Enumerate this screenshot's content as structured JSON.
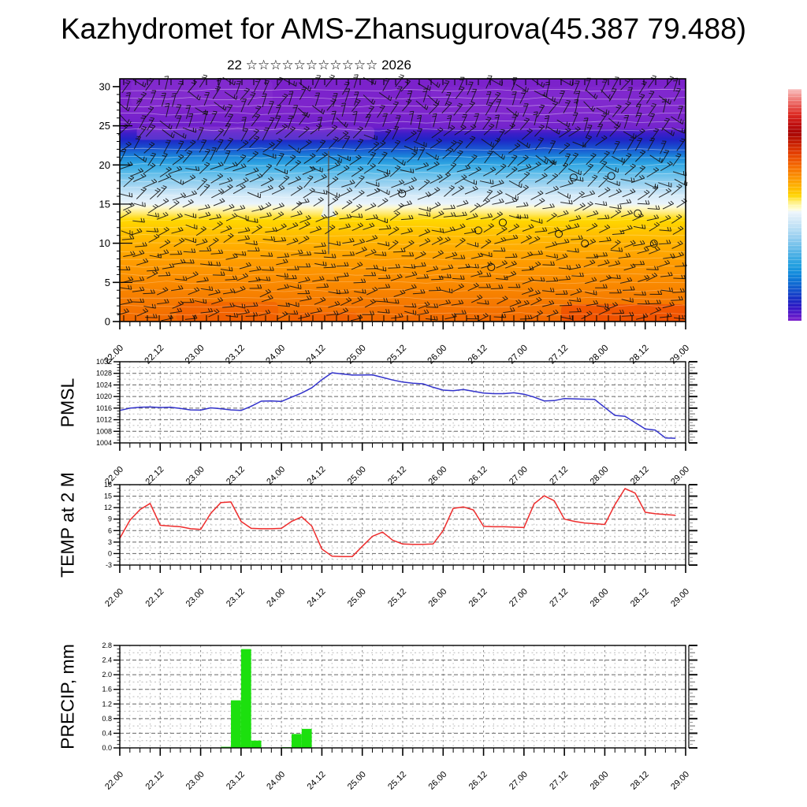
{
  "page": {
    "title": "Kazhydromet for AMS-Zhansugurova(45.387 79.488)",
    "subtitle": "22 ☆☆☆☆☆☆☆☆☆☆☆ 2026",
    "background": "#ffffff"
  },
  "time_axis": {
    "start": "22.00",
    "end": "29.00",
    "labels": [
      "22.00",
      "22.12",
      "23.00",
      "23.12",
      "24.00",
      "24.12",
      "25.00",
      "25.12",
      "26.00",
      "26.12",
      "27.00",
      "27.12",
      "28.00",
      "28.12",
      "29.00"
    ],
    "minor_step_hours": 3,
    "major_label_step_hours": 12
  },
  "chart_data": [
    {
      "id": "cross_section",
      "type": "heatmap",
      "title": "",
      "description": "time-height cross-section, colored by temperature with wind barbs",
      "ylim": [
        0,
        31
      ],
      "yticks": [
        0,
        5,
        10,
        15,
        20,
        25,
        30
      ],
      "ytick_labels": [
        "0",
        "5",
        "10",
        "15",
        "20",
        "25",
        "30"
      ],
      "gradient_stops": [
        {
          "pct": 0,
          "color": "#7b21cb"
        },
        {
          "pct": 13,
          "color": "#7e25cc"
        },
        {
          "pct": 20,
          "color": "#6d1ecb"
        },
        {
          "pct": 22.5,
          "color": "#3c1ec8"
        },
        {
          "pct": 25,
          "color": "#2124c6"
        },
        {
          "pct": 27,
          "color": "#1a3ecb"
        },
        {
          "pct": 29.5,
          "color": "#1a5ed2"
        },
        {
          "pct": 32,
          "color": "#1b86da"
        },
        {
          "pct": 35,
          "color": "#2fa4e2"
        },
        {
          "pct": 38.5,
          "color": "#58bae9"
        },
        {
          "pct": 42,
          "color": "#8accee"
        },
        {
          "pct": 45,
          "color": "#b0daf3"
        },
        {
          "pct": 48,
          "color": "#d4eaf8"
        },
        {
          "pct": 51.5,
          "color": "#eaf4fb"
        },
        {
          "pct": 53,
          "color": "#fdf8cf"
        },
        {
          "pct": 55.5,
          "color": "#ffe96e"
        },
        {
          "pct": 58,
          "color": "#ffd800"
        },
        {
          "pct": 62,
          "color": "#ffc800"
        },
        {
          "pct": 68,
          "color": "#ffb000"
        },
        {
          "pct": 75,
          "color": "#fe9d00"
        },
        {
          "pct": 82,
          "color": "#fb8e00"
        },
        {
          "pct": 90,
          "color": "#f67e00"
        },
        {
          "pct": 100,
          "color": "#f26800"
        }
      ],
      "patches": [
        {
          "xf": 0.03,
          "wf": 0.42,
          "h0": 23.2,
          "h1": 24.9,
          "color": "#9b4ad8",
          "opacity": 0.45
        },
        {
          "xf": 0.02,
          "wf": 0.25,
          "h0": 27.5,
          "h1": 30.8,
          "color": "#8d36d2",
          "opacity": 0.4
        },
        {
          "xf": 0.55,
          "wf": 0.45,
          "h0": 24.5,
          "h1": 30.0,
          "color": "#8d36d2",
          "opacity": 0.25
        },
        {
          "xf": 0.78,
          "wf": 0.22,
          "h0": 0.0,
          "h1": 2.2,
          "color": "#ee3a00",
          "opacity": 0.5
        },
        {
          "xf": 0.1,
          "wf": 0.18,
          "h0": 0.0,
          "h1": 2.5,
          "color": "#ee4a00",
          "opacity": 0.35
        },
        {
          "xf": 0.3,
          "wf": 0.12,
          "h0": 0.0,
          "h1": 1.2,
          "color": "#ee4a00",
          "opacity": 0.3
        }
      ],
      "seam_time_frac": 0.369,
      "overlays": {
        "wind_barbs": true,
        "calm_circles": true,
        "contour_lines": true
      }
    },
    {
      "id": "pmsl",
      "type": "line",
      "title": "PMSL",
      "color": "#3333cc",
      "ylim": [
        1004,
        1032
      ],
      "yticks": [
        1004,
        1008,
        1012,
        1016,
        1020,
        1024,
        1028,
        1032
      ],
      "ytick_labels": [
        "1004",
        "1008",
        "1012",
        "1016",
        "1020",
        "1024",
        "1028",
        "1032"
      ],
      "minor_unit": 1,
      "x_start": "22.00",
      "step_hours": 3,
      "values": [
        1015.2,
        1016.0,
        1016.3,
        1016.4,
        1016.2,
        1016.3,
        1015.9,
        1015.4,
        1015.3,
        1016.1,
        1015.8,
        1015.4,
        1015.2,
        1016.6,
        1018.4,
        1018.5,
        1018.3,
        1019.8,
        1021.2,
        1023.0,
        1025.8,
        1028.2,
        1027.8,
        1027.4,
        1027.4,
        1027.5,
        1026.6,
        1025.7,
        1025.0,
        1024.6,
        1024.4,
        1023.2,
        1022.2,
        1022.0,
        1022.4,
        1021.8,
        1021.2,
        1021.0,
        1021.0,
        1021.3,
        1020.8,
        1019.8,
        1018.5,
        1018.6,
        1019.3,
        1019.2,
        1019.1,
        1019.0,
        1016.2,
        1013.5,
        1013.2,
        1011.0,
        1008.8,
        1008.4,
        1005.7,
        1005.6
      ]
    },
    {
      "id": "temp2m",
      "type": "line",
      "title": "TEMP at 2 M",
      "color": "#ee2c2c",
      "ylim": [
        -3,
        18
      ],
      "yticks": [
        -3,
        0,
        3,
        6,
        9,
        12,
        15,
        18
      ],
      "ytick_labels": [
        "-3",
        "0",
        "3",
        "6",
        "9",
        "12",
        "15",
        "18"
      ],
      "minor_unit": 1,
      "x_start": "22.00",
      "step_hours": 3,
      "values": [
        4.0,
        8.7,
        11.5,
        13.1,
        7.4,
        7.2,
        7.0,
        6.5,
        6.3,
        10.5,
        13.3,
        13.5,
        8.4,
        6.6,
        6.5,
        6.5,
        6.6,
        8.4,
        9.6,
        7.2,
        1.2,
        -0.7,
        -0.8,
        -0.8,
        1.9,
        4.5,
        5.6,
        3.5,
        2.5,
        2.4,
        2.4,
        2.5,
        6.0,
        11.8,
        12.2,
        11.4,
        7.1,
        7.0,
        7.0,
        6.9,
        6.8,
        13.0,
        15.1,
        13.8,
        9.0,
        8.4,
        8.0,
        7.8,
        7.6,
        12.8,
        17.0,
        15.8,
        10.8,
        10.4,
        10.2,
        10.0
      ]
    },
    {
      "id": "precip",
      "type": "bar",
      "title": "PRECIP, mm",
      "color": "#1ce00e",
      "ylim": [
        0,
        2.8
      ],
      "yticks": [
        0,
        0.4,
        0.8,
        1.2,
        1.6,
        2.0,
        2.4,
        2.8
      ],
      "ytick_labels": [
        "0.0",
        "0.4",
        "0.8",
        "1.2",
        "1.6",
        "2.0",
        "2.4",
        "2.8"
      ],
      "minor_unit": 0.1,
      "x_start": "22.00",
      "step_hours": 3,
      "values": [
        0,
        0,
        0,
        0,
        0,
        0,
        0,
        0,
        0,
        0,
        0.03,
        1.3,
        2.7,
        0.2,
        0,
        0,
        0.02,
        0.38,
        0.52,
        0,
        0,
        0,
        0,
        0,
        0,
        0,
        0,
        0,
        0,
        0,
        0,
        0,
        0,
        0,
        0,
        0,
        0,
        0,
        0,
        0,
        0,
        0,
        0,
        0,
        0,
        0,
        0,
        0,
        0,
        0,
        0,
        0,
        0,
        0,
        0,
        0
      ]
    }
  ],
  "colorbar": {
    "orientation": "vertical",
    "stops": [
      {
        "pct": 0,
        "color": "#f8c0c0"
      },
      {
        "pct": 3,
        "color": "#f3928f"
      },
      {
        "pct": 7,
        "color": "#e85a55"
      },
      {
        "pct": 11,
        "color": "#dd2a22"
      },
      {
        "pct": 15,
        "color": "#c11010"
      },
      {
        "pct": 19,
        "color": "#a80505"
      },
      {
        "pct": 23,
        "color": "#c51c00"
      },
      {
        "pct": 27,
        "color": "#e13a00"
      },
      {
        "pct": 31,
        "color": "#ef5800"
      },
      {
        "pct": 35,
        "color": "#f87a00"
      },
      {
        "pct": 39,
        "color": "#fc9a00"
      },
      {
        "pct": 43,
        "color": "#ffbb00"
      },
      {
        "pct": 46,
        "color": "#ffd500"
      },
      {
        "pct": 48,
        "color": "#ffe95c"
      },
      {
        "pct": 50,
        "color": "#fff7a8"
      },
      {
        "pct": 52,
        "color": "#fffdd8"
      },
      {
        "pct": 53,
        "color": "#eef6fc"
      },
      {
        "pct": 56,
        "color": "#d8ebf8"
      },
      {
        "pct": 60,
        "color": "#badff5"
      },
      {
        "pct": 64,
        "color": "#97cff0"
      },
      {
        "pct": 68,
        "color": "#6fbfea"
      },
      {
        "pct": 72,
        "color": "#45ade4"
      },
      {
        "pct": 76,
        "color": "#22a0e0"
      },
      {
        "pct": 80,
        "color": "#1188dc"
      },
      {
        "pct": 84,
        "color": "#0f6ad2"
      },
      {
        "pct": 88,
        "color": "#1547ca"
      },
      {
        "pct": 91,
        "color": "#1b2cc4"
      },
      {
        "pct": 94,
        "color": "#2e17c5"
      },
      {
        "pct": 97,
        "color": "#5519ca"
      },
      {
        "pct": 100,
        "color": "#7e22cc"
      }
    ]
  }
}
